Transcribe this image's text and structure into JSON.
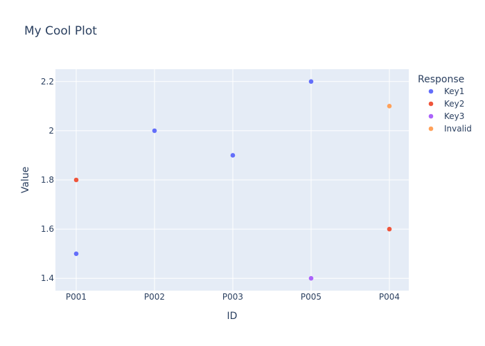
{
  "chart_data": {
    "type": "scatter",
    "title": "My Cool Plot",
    "xlabel": "ID",
    "ylabel": "Value",
    "categories": [
      "P001",
      "P002",
      "P003",
      "P005",
      "P004"
    ],
    "yticks": [
      "1.4",
      "1.6",
      "1.8",
      "2",
      "2.2"
    ],
    "ylim": [
      1.35,
      2.25
    ],
    "grid": true,
    "legend_title": "Response",
    "legend_position": "right",
    "series": [
      {
        "name": "Key1",
        "color": "#636efa",
        "points": [
          {
            "x": "P001",
            "y": 1.5
          },
          {
            "x": "P002",
            "y": 2.0
          },
          {
            "x": "P003",
            "y": 1.9
          },
          {
            "x": "P005",
            "y": 2.2
          }
        ]
      },
      {
        "name": "Key2",
        "color": "#ef553b",
        "points": [
          {
            "x": "P001",
            "y": 1.8
          },
          {
            "x": "P004",
            "y": 1.6
          }
        ]
      },
      {
        "name": "Key3",
        "color": "#ab63fa",
        "points": [
          {
            "x": "P005",
            "y": 1.4
          }
        ]
      },
      {
        "name": "Invalid",
        "color": "#ffa15a",
        "points": [
          {
            "x": "P004",
            "y": 2.1
          }
        ]
      }
    ]
  },
  "colors": {
    "plot_background": "#e5ecf6",
    "grid": "#ffffff",
    "text": "#2a3f5f"
  }
}
